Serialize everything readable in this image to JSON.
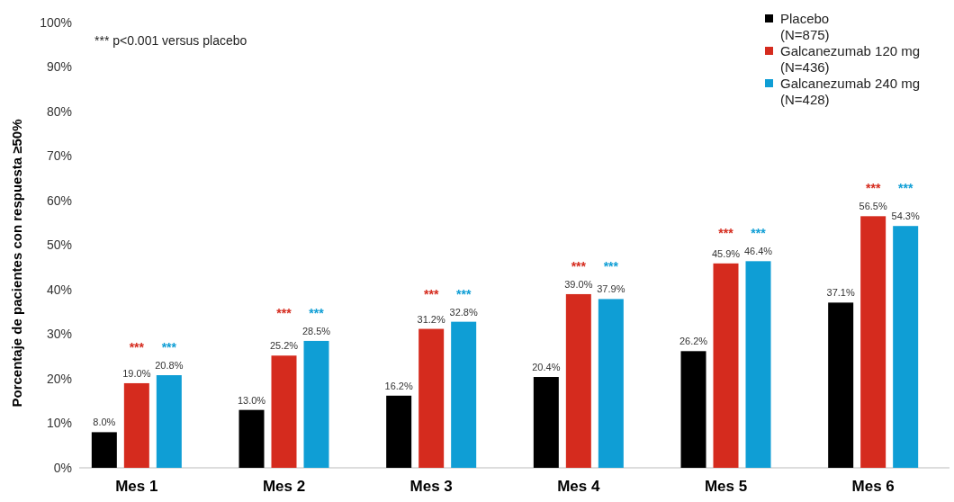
{
  "chart_data": {
    "type": "bar",
    "ylabel": "Porcentaje de pacientes con respuesta ≥50%",
    "categories": [
      "Mes 1",
      "Mes 2",
      "Mes 3",
      "Mes 4",
      "Mes 5",
      "Mes 6"
    ],
    "series": [
      {
        "name": "Placebo\n(N=875)",
        "color": "#000000",
        "values": [
          8.0,
          13.0,
          16.2,
          20.4,
          26.2,
          37.1
        ],
        "value_labels": [
          "8.0%",
          "13.0%",
          "16.2%",
          "20.4%",
          "26.2%",
          "37.1%"
        ]
      },
      {
        "name": "Galcanezumab 120 mg\n(N=436)",
        "color": "#d52b1e",
        "values": [
          19.0,
          25.2,
          31.2,
          39.0,
          45.9,
          56.5
        ],
        "value_labels": [
          "19.0%",
          "25.2%",
          "31.2%",
          "39.0%",
          "45.9%",
          "56.5%"
        ]
      },
      {
        "name": "Galcanezumab 240 mg\n(N=428)",
        "color": "#0f9ed5",
        "values": [
          20.8,
          28.5,
          32.8,
          37.9,
          46.4,
          54.3
        ],
        "value_labels": [
          "20.8%",
          "28.5%",
          "32.8%",
          "37.9%",
          "46.4%",
          "54.3%"
        ]
      }
    ],
    "ylim": [
      0,
      100
    ],
    "yticks": [
      {
        "value": 0,
        "label": "0%"
      },
      {
        "value": 10,
        "label": "10%"
      },
      {
        "value": 20,
        "label": "20%"
      },
      {
        "value": 30,
        "label": "30%"
      },
      {
        "value": 40,
        "label": "40%"
      },
      {
        "value": 50,
        "label": "50%"
      },
      {
        "value": 60,
        "label": "60%"
      },
      {
        "value": 70,
        "label": "70%"
      },
      {
        "value": 80,
        "label": "80%"
      },
      {
        "value": 90,
        "label": "90%"
      },
      {
        "value": 100,
        "label": "100%"
      }
    ],
    "grid": false,
    "legend": "top right",
    "annotations": [
      "*** p<0.001 versus placebo",
      "***",
      "***",
      "***",
      "***",
      "***",
      "***",
      "***",
      "***",
      "***",
      "***",
      "***",
      "***"
    ]
  }
}
